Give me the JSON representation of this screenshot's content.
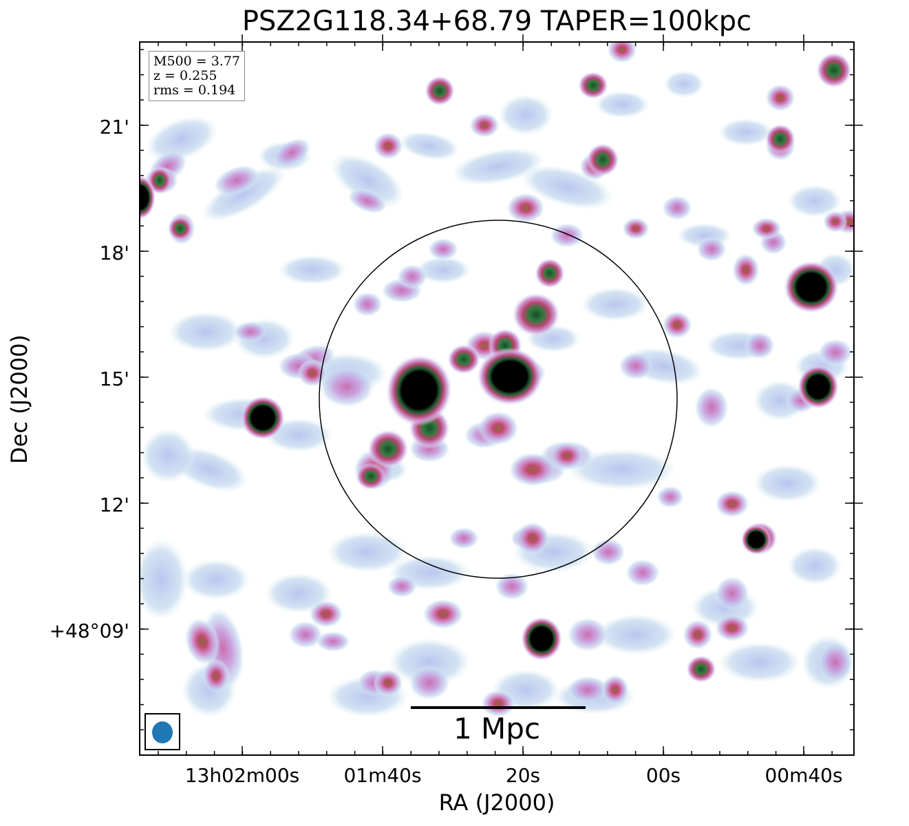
{
  "title": "PSZ2G118.34+68.79 TAPER=100kpc",
  "info": {
    "mass": "M500 = 3.77",
    "redshift": "z = 0.255",
    "rms": "rms = 0.194"
  },
  "axes": {
    "xlabel": "RA (J2000)",
    "ylabel": "Dec (J2000)",
    "xticks": [
      "13h02m00s",
      "01m40s",
      "20s",
      "00s",
      "00m40s"
    ],
    "yticks": [
      "21'",
      "18'",
      "15'",
      "12'",
      "+48°09'"
    ]
  },
  "scalebar": {
    "label": "1 Mpc"
  },
  "colors": {
    "faint": "#c8dcf0",
    "mid": "#c88fd0",
    "strong": "#c8507a",
    "core": "#2e7a3a",
    "peak": "#000000",
    "beam": "#1f77b4",
    "circle": "#000000"
  }
}
